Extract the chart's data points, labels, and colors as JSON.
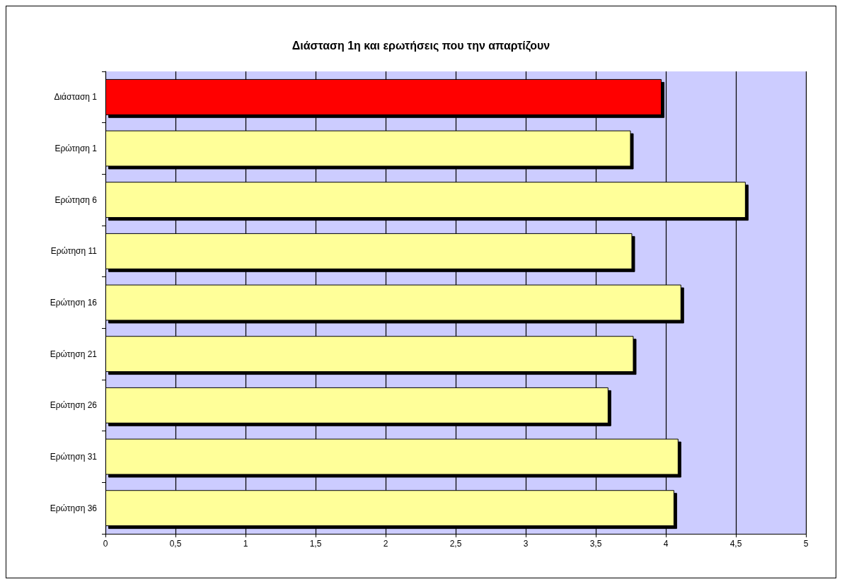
{
  "chart_data": {
    "type": "bar",
    "orientation": "horizontal",
    "title": "Διάσταση 1η και ερωτήσεις που την απαρτίζουν",
    "categories": [
      "Διάσταση 1",
      "Ερώτηση 1",
      "Ερώτηση 6",
      "Ερώτηση 11",
      "Ερώτηση 16",
      "Ερώτηση 21",
      "Ερώτηση 26",
      "Ερώτηση 31",
      "Ερώτηση 36"
    ],
    "values": [
      3.97,
      3.75,
      4.57,
      3.76,
      4.11,
      3.77,
      3.59,
      4.09,
      4.06
    ],
    "colors": [
      "#ff0000",
      "#ffff99",
      "#ffff99",
      "#ffff99",
      "#ffff99",
      "#ffff99",
      "#ffff99",
      "#ffff99",
      "#ffff99"
    ],
    "xlim": [
      0,
      5
    ],
    "xticks": [
      0,
      {
        "value": 0.5,
        "label": "0,5"
      },
      1,
      {
        "value": 1.5,
        "label": "1,5"
      },
      2,
      {
        "value": 2.5,
        "label": "2,5"
      },
      3,
      {
        "value": 3.5,
        "label": "3,5"
      },
      4,
      {
        "value": 4.5,
        "label": "4,5"
      },
      5
    ],
    "bands": [
      {
        "axis": "x",
        "from": 0,
        "to": 5,
        "color": "#ccccff"
      }
    ],
    "grid": "x"
  }
}
